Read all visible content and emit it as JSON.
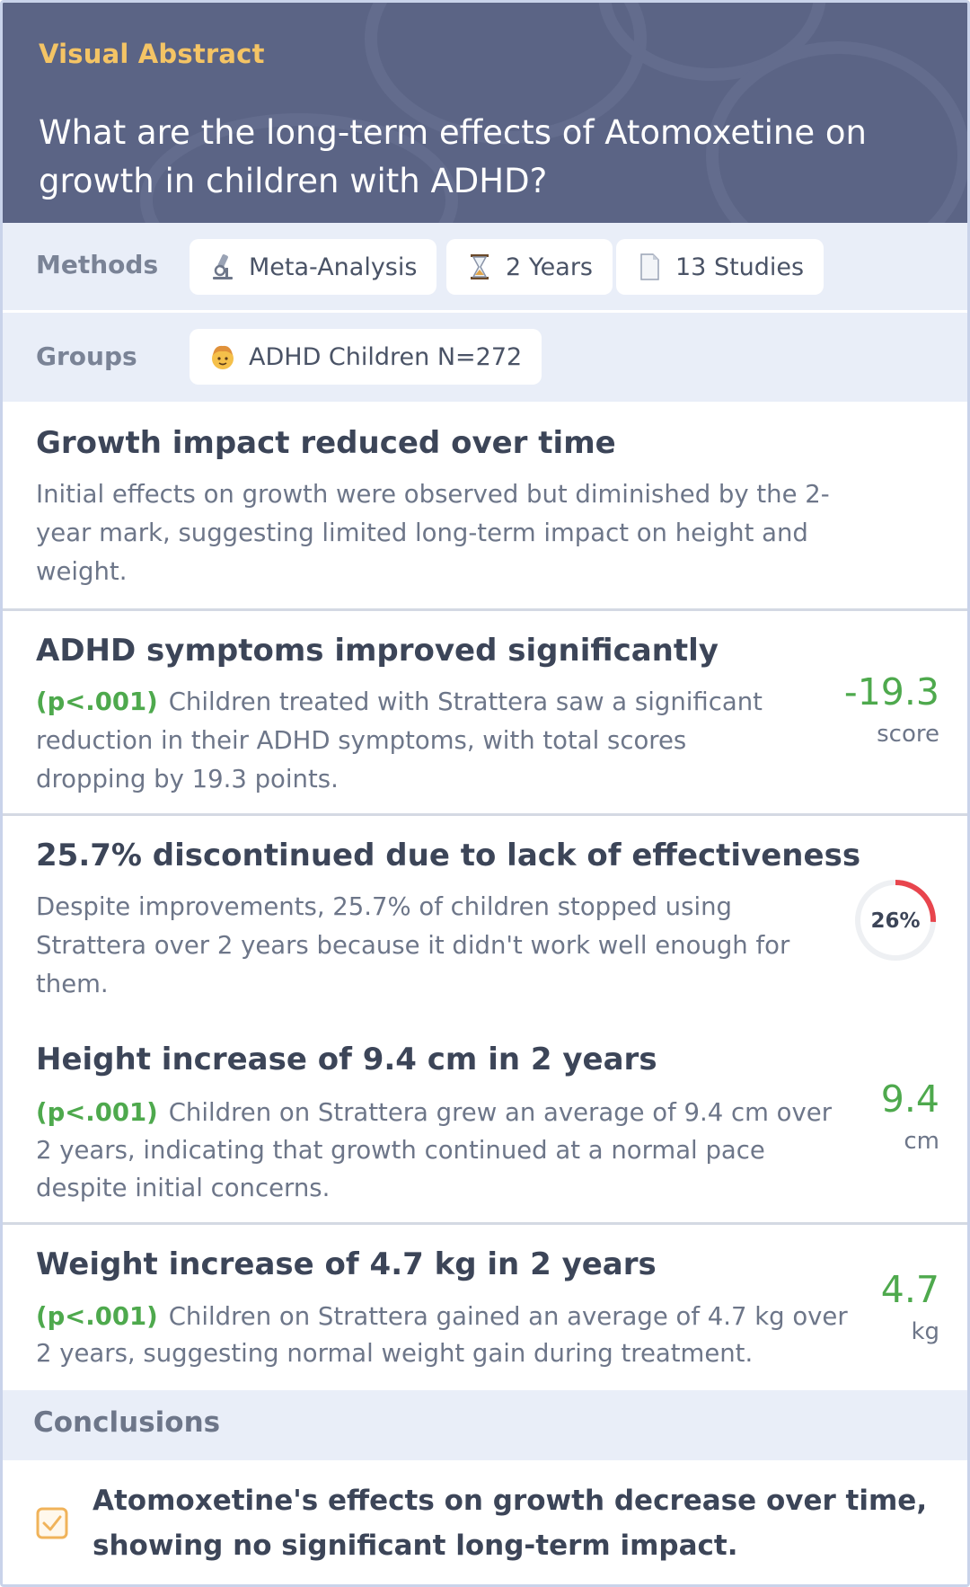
{
  "header": {
    "tag": "Visual Abstract",
    "question": "What are the long-term effects of Atomoxetine on growth in children with ADHD?"
  },
  "methods": {
    "label": "Methods",
    "chips": [
      {
        "icon": "microscope-icon",
        "text": "Meta-Analysis"
      },
      {
        "icon": "hourglass-icon",
        "text": "2 Years"
      },
      {
        "icon": "document-icon",
        "text": "13 Studies"
      }
    ]
  },
  "groups": {
    "label": "Groups",
    "chips": [
      {
        "icon": "child-icon",
        "text": "ADHD Children N=272"
      }
    ]
  },
  "findings": [
    {
      "title": "Growth impact reduced over time",
      "pvalue": "",
      "text": "Initial effects on growth were observed but diminished by the 2-year mark, suggesting limited long-term impact on height and weight."
    },
    {
      "title": "ADHD symptoms improved significantly",
      "pvalue": "(p<.001)",
      "text": "Children treated with Strattera saw a significant reduction in their ADHD symptoms, with total scores dropping by 19.3 points.",
      "stat_value": "-19.3",
      "stat_unit": "score"
    },
    {
      "title": "25.7% discontinued due to lack of effectiveness",
      "pvalue": "",
      "text": "Despite improvements, 25.7% of children stopped using Strattera over 2 years because it didn't work well enough for them.",
      "ring_label": "26%",
      "ring_fraction": 0.257,
      "ring_color": "#e8454d"
    },
    {
      "title": "Height increase of 9.4 cm in 2 years",
      "pvalue": "(p<.001)",
      "text": "Children on Strattera grew an average of 9.4 cm over 2 years, indicating that growth continued at a normal pace despite initial concerns.",
      "stat_value": "9.4",
      "stat_unit": "cm"
    },
    {
      "title": "Weight increase of 4.7 kg in 2 years",
      "pvalue": "(p<.001)",
      "text": "Children on Strattera gained an average of 4.7 kg over 2 years, suggesting normal weight gain during treatment.",
      "stat_value": "4.7",
      "stat_unit": "kg"
    }
  ],
  "conclusions": {
    "label": "Conclusions",
    "text": "Atomoxetine's effects on growth decrease over time, showing no significant long-term impact."
  },
  "colors": {
    "header_bg": "#5b6485",
    "tag": "#f4c465",
    "positive": "#4ea94d",
    "row_bg": "#e9eef8",
    "check": "#f0b35a"
  }
}
